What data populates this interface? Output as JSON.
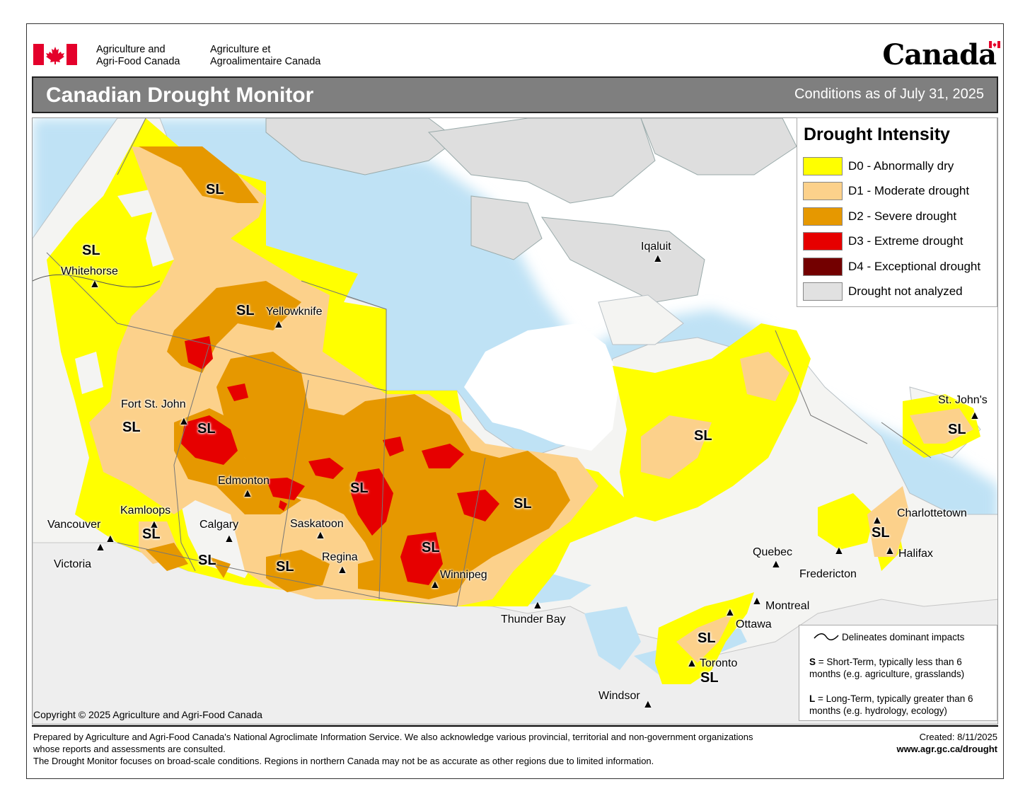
{
  "header": {
    "agency_en_line1": "Agriculture and",
    "agency_en_line2": "Agri-Food Canada",
    "agency_fr_line1": "Agriculture et",
    "agency_fr_line2": "Agroalimentaire Canada",
    "wordmark": "Canada",
    "title": "Canadian Drought Monitor",
    "conditions": "Conditions as of July 31, 2025"
  },
  "legend": {
    "title": "Drought Intensity",
    "items": [
      {
        "label": "D0 - Abnormally dry",
        "color": "#ffff00"
      },
      {
        "label": "D1 - Moderate drought",
        "color": "#fcd18b"
      },
      {
        "label": "D2 - Severe drought",
        "color": "#e69800"
      },
      {
        "label": "D3 - Extreme drought",
        "color": "#e60000"
      },
      {
        "label": "D4 - Exceptional drought",
        "color": "#730000"
      },
      {
        "label": "Drought not analyzed",
        "color": "#e1e1e1"
      }
    ]
  },
  "impacts": {
    "delineates": "Delineates dominant impacts",
    "s_key": "S",
    "s_text": " = Short-Term, typically less than 6 months (e.g. agriculture, grasslands)",
    "l_key": "L",
    "l_text": " = Long-Term, typically greater  than 6 months (e.g. hydrology, ecology)"
  },
  "cities": {
    "whitehorse": "Whitehorse",
    "yellowknife": "Yellowknife",
    "iqaluit": "Iqaluit",
    "fort_st_john": "Fort St. John",
    "edmonton": "Edmonton",
    "kamloops": "Kamloops",
    "vancouver": "Vancouver",
    "victoria": "Victoria",
    "calgary": "Calgary",
    "saskatoon": "Saskatoon",
    "regina": "Regina",
    "winnipeg": "Winnipeg",
    "thunder_bay": "Thunder Bay",
    "quebec": "Quebec",
    "montreal": "Montreal",
    "ottawa": "Ottawa",
    "toronto": "Toronto",
    "windsor": "Windsor",
    "fredericton": "Fredericton",
    "charlottetown": "Charlottetown",
    "halifax": "Halifax",
    "st_johns": "St. John's"
  },
  "impact_label": "SL",
  "copyright": "Copyright © 2025 Agriculture and Agri-Food Canada",
  "footer": {
    "line1": "Prepared by Agriculture and Agri-Food Canada's National Agroclimate Information Service.  We also acknowledge various provincial, territorial and non-government organizations whose reports and assessments are consulted.",
    "line2": "The Drought Monitor focuses on broad-scale conditions.  Regions in northern Canada may not be as accurate as other regions due to limited information.",
    "created": "Created: 8/11/2025",
    "url": "www.agr.gc.ca/drought"
  }
}
